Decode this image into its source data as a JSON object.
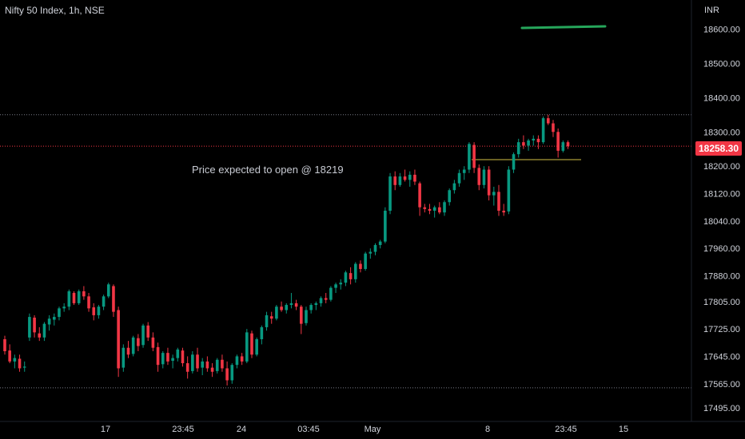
{
  "header": {
    "title": "Nifty 50 Index, 1h, NSE",
    "currency": "INR"
  },
  "annotation": "Price expected to open @ 18219",
  "last_price": "18258.30",
  "chart_data": {
    "type": "candlestick",
    "title": "Nifty 50 Index, 1h, NSE",
    "ylim": [
      17455,
      18685
    ],
    "y_ticks": [
      "18600.00",
      "18500.00",
      "18400.00",
      "18300.00",
      "18200.00",
      "18120.00",
      "18040.00",
      "17960.00",
      "17880.00",
      "17805.00",
      "17725.00",
      "17645.00",
      "17565.00",
      "17495.00"
    ],
    "x_ticks": [
      "17",
      "23:45",
      "24",
      "03:45",
      "May",
      "8",
      "23:45",
      "15"
    ],
    "last_price": 18258.3,
    "horizontal_lines": [
      {
        "name": "last-price-line",
        "price": 18258.3,
        "color": "#f23645",
        "style": "dotted"
      },
      {
        "name": "upper-level",
        "price": 18350,
        "color": "#787b86",
        "style": "dotted"
      },
      {
        "name": "lower-level",
        "price": 17553,
        "color": "#787b86",
        "style": "dotted"
      },
      {
        "name": "open-estimate",
        "price": 18219,
        "color": "#d4c246",
        "style": "solid"
      }
    ],
    "colors": {
      "up": "#089981",
      "down": "#f23645",
      "background": "#000000",
      "trendline": "#26a65b"
    },
    "candles": [
      [
        17695,
        17705,
        17650,
        17660
      ],
      [
        17662,
        17680,
        17625,
        17630
      ],
      [
        17630,
        17650,
        17610,
        17640
      ],
      [
        17638,
        17650,
        17600,
        17610
      ],
      [
        17612,
        17630,
        17600,
        17615
      ],
      [
        17700,
        17770,
        17690,
        17760
      ],
      [
        17758,
        17765,
        17700,
        17715
      ],
      [
        17712,
        17730,
        17690,
        17700
      ],
      [
        17700,
        17745,
        17690,
        17740
      ],
      [
        17738,
        17765,
        17720,
        17755
      ],
      [
        17752,
        17770,
        17735,
        17760
      ],
      [
        17760,
        17790,
        17750,
        17785
      ],
      [
        17785,
        17800,
        17775,
        17790
      ],
      [
        17790,
        17840,
        17780,
        17835
      ],
      [
        17830,
        17835,
        17795,
        17800
      ],
      [
        17800,
        17840,
        17795,
        17835
      ],
      [
        17835,
        17850,
        17810,
        17820
      ],
      [
        17820,
        17830,
        17775,
        17785
      ],
      [
        17788,
        17800,
        17750,
        17765
      ],
      [
        17765,
        17795,
        17755,
        17790
      ],
      [
        17790,
        17825,
        17780,
        17820
      ],
      [
        17820,
        17860,
        17815,
        17855
      ],
      [
        17850,
        17855,
        17760,
        17775
      ],
      [
        17780,
        17790,
        17585,
        17610
      ],
      [
        17612,
        17680,
        17600,
        17670
      ],
      [
        17670,
        17690,
        17640,
        17650
      ],
      [
        17652,
        17705,
        17645,
        17700
      ],
      [
        17698,
        17710,
        17660,
        17675
      ],
      [
        17678,
        17740,
        17670,
        17735
      ],
      [
        17735,
        17745,
        17690,
        17700
      ],
      [
        17700,
        17715,
        17660,
        17670
      ],
      [
        17672,
        17685,
        17600,
        17620
      ],
      [
        17622,
        17660,
        17610,
        17655
      ],
      [
        17655,
        17670,
        17620,
        17630
      ],
      [
        17632,
        17650,
        17610,
        17640
      ],
      [
        17640,
        17670,
        17630,
        17665
      ],
      [
        17662,
        17670,
        17615,
        17625
      ],
      [
        17625,
        17645,
        17580,
        17600
      ],
      [
        17602,
        17660,
        17595,
        17650
      ],
      [
        17650,
        17670,
        17600,
        17610
      ],
      [
        17612,
        17640,
        17590,
        17630
      ],
      [
        17630,
        17645,
        17600,
        17610
      ],
      [
        17612,
        17625,
        17585,
        17600
      ],
      [
        17602,
        17640,
        17595,
        17635
      ],
      [
        17635,
        17650,
        17600,
        17610
      ],
      [
        17610,
        17630,
        17560,
        17575
      ],
      [
        17575,
        17625,
        17565,
        17620
      ],
      [
        17620,
        17650,
        17610,
        17645
      ],
      [
        17645,
        17655,
        17620,
        17630
      ],
      [
        17630,
        17725,
        17625,
        17715
      ],
      [
        17712,
        17720,
        17640,
        17650
      ],
      [
        17650,
        17700,
        17645,
        17695
      ],
      [
        17695,
        17735,
        17680,
        17730
      ],
      [
        17730,
        17775,
        17720,
        17765
      ],
      [
        17762,
        17775,
        17740,
        17755
      ],
      [
        17755,
        17795,
        17750,
        17790
      ],
      [
        17790,
        17805,
        17775,
        17780
      ],
      [
        17780,
        17800,
        17770,
        17795
      ],
      [
        17795,
        17830,
        17785,
        17800
      ],
      [
        17800,
        17810,
        17780,
        17790
      ],
      [
        17790,
        17795,
        17710,
        17740
      ],
      [
        17742,
        17790,
        17735,
        17780
      ],
      [
        17780,
        17800,
        17770,
        17795
      ],
      [
        17795,
        17805,
        17780,
        17800
      ],
      [
        17800,
        17820,
        17790,
        17815
      ],
      [
        17815,
        17830,
        17800,
        17810
      ],
      [
        17810,
        17850,
        17805,
        17845
      ],
      [
        17845,
        17860,
        17830,
        17855
      ],
      [
        17855,
        17870,
        17840,
        17860
      ],
      [
        17860,
        17895,
        17850,
        17890
      ],
      [
        17888,
        17905,
        17855,
        17870
      ],
      [
        17870,
        17920,
        17860,
        17915
      ],
      [
        17915,
        17925,
        17890,
        17900
      ],
      [
        17900,
        17950,
        17895,
        17945
      ],
      [
        17945,
        17960,
        17930,
        17950
      ],
      [
        17950,
        17975,
        17940,
        17970
      ],
      [
        17970,
        17985,
        17960,
        17980
      ],
      [
        17980,
        18080,
        17975,
        18070
      ],
      [
        18070,
        18180,
        18060,
        18170
      ],
      [
        18170,
        18185,
        18130,
        18145
      ],
      [
        18145,
        18180,
        18140,
        18170
      ],
      [
        18170,
        18190,
        18155,
        18160
      ],
      [
        18160,
        18185,
        18140,
        18175
      ],
      [
        18175,
        18190,
        18145,
        18155
      ],
      [
        18150,
        18155,
        18055,
        18080
      ],
      [
        18080,
        18090,
        18065,
        18075
      ],
      [
        18075,
        18090,
        18060,
        18070
      ],
      [
        18070,
        18085,
        18050,
        18080
      ],
      [
        18080,
        18095,
        18060,
        18065
      ],
      [
        18065,
        18100,
        18055,
        18095
      ],
      [
        18095,
        18135,
        18085,
        18130
      ],
      [
        18130,
        18160,
        18120,
        18150
      ],
      [
        18150,
        18190,
        18140,
        18180
      ],
      [
        18180,
        18200,
        18160,
        18190
      ],
      [
        18190,
        18270,
        18180,
        18265
      ],
      [
        18262,
        18270,
        18180,
        18195
      ],
      [
        18195,
        18205,
        18130,
        18145
      ],
      [
        18145,
        18200,
        18135,
        18190
      ],
      [
        18190,
        18200,
        18100,
        18115
      ],
      [
        18115,
        18140,
        18085,
        18125
      ],
      [
        18125,
        18145,
        18055,
        18070
      ],
      [
        18070,
        18090,
        18055,
        18065
      ],
      [
        18068,
        18200,
        18060,
        18190
      ],
      [
        18190,
        18240,
        18180,
        18235
      ],
      [
        18235,
        18280,
        18225,
        18270
      ],
      [
        18270,
        18290,
        18250,
        18260
      ],
      [
        18260,
        18280,
        18245,
        18275
      ],
      [
        18275,
        18290,
        18260,
        18280
      ],
      [
        18280,
        18290,
        18250,
        18270
      ],
      [
        18270,
        18345,
        18265,
        18340
      ],
      [
        18340,
        18350,
        18320,
        18325
      ],
      [
        18325,
        18335,
        18285,
        18300
      ],
      [
        18300,
        18310,
        18225,
        18245
      ],
      [
        18245,
        18275,
        18240,
        18270
      ],
      [
        18270,
        18275,
        18250,
        18258.3
      ]
    ]
  }
}
